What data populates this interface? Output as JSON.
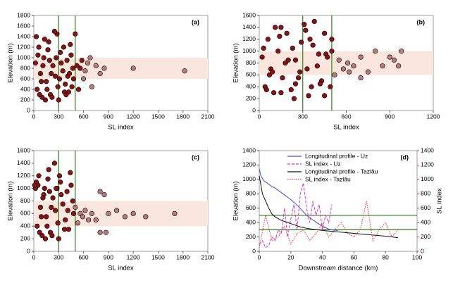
{
  "chart_data": [
    {
      "type": "scatter",
      "label": "(a)",
      "x_label": "SL index",
      "y_label": "Elevation (m)",
      "xlim": [
        0,
        2100
      ],
      "xticks": [
        0,
        300,
        600,
        900,
        1200,
        1500,
        1800,
        2100
      ],
      "ylim": [
        0,
        1800
      ],
      "yticks": [
        0,
        200,
        400,
        600,
        800,
        1000,
        1200,
        1400,
        1600,
        1800
      ],
      "band": [
        600,
        1000
      ],
      "band_color": "#fbe6dd",
      "vlines": [
        300,
        500
      ],
      "vline_color": "#2e7d1e",
      "series": [
        {
          "color": "#8b1212",
          "x": [
            20,
            40,
            60,
            80,
            100,
            120,
            150,
            180,
            200,
            230,
            260,
            280,
            300,
            320,
            350,
            380,
            400,
            420,
            450,
            480,
            30,
            70,
            110,
            140,
            170,
            210,
            250,
            290,
            330,
            370,
            410,
            440,
            470,
            50,
            90,
            130,
            160,
            190,
            220,
            270,
            310,
            360,
            390,
            430,
            460,
            500,
            520,
            540,
            560,
            580
          ],
          "values": [
            900,
            400,
            1200,
            700,
            250,
            1000,
            550,
            1300,
            300,
            850,
            650,
            1450,
            200,
            1100,
            750,
            500,
            950,
            350,
            1050,
            600,
            1400,
            300,
            850,
            200,
            1150,
            700,
            1500,
            450,
            900,
            350,
            650,
            1250,
            800,
            1050,
            550,
            1350,
            400,
            950,
            250,
            1000,
            600,
            1200,
            300,
            700,
            450,
            1450,
            850,
            400,
            800,
            950
          ]
        },
        {
          "color": "#b97a7a",
          "x": [
            600,
            620,
            650,
            680,
            700,
            750,
            800,
            850,
            1200,
            1820
          ],
          "values": [
            600,
            750,
            900,
            1000,
            450,
            850,
            700,
            800,
            800,
            750
          ]
        }
      ]
    },
    {
      "type": "scatter",
      "label": "(b)",
      "x_label": "SL index",
      "y_label": "Elevation (m)",
      "xlim": [
        0,
        1200
      ],
      "xticks": [
        0,
        300,
        600,
        900,
        1200
      ],
      "ylim": [
        0,
        1600
      ],
      "yticks": [
        0,
        200,
        400,
        600,
        800,
        1000,
        1200,
        1400,
        1600
      ],
      "band": [
        600,
        1000
      ],
      "band_color": "#fbe6dd",
      "vlines": [
        300,
        500
      ],
      "vline_color": "#2e7d1e",
      "series": [
        {
          "color": "#8b1212",
          "x": [
            20,
            40,
            60,
            80,
            100,
            130,
            160,
            190,
            220,
            250,
            280,
            310,
            340,
            370,
            400,
            430,
            460,
            490,
            30,
            70,
            110,
            150,
            200,
            240,
            290,
            330,
            380,
            420,
            470,
            50,
            90,
            140,
            180,
            230,
            270,
            320,
            360,
            410,
            450,
            500,
            500,
            450,
            150,
            250,
            350
          ],
          "values": [
            900,
            400,
            1200,
            700,
            300,
            1000,
            550,
            1300,
            350,
            850,
            650,
            1450,
            250,
            1100,
            750,
            500,
            950,
            400,
            1050,
            600,
            1400,
            300,
            850,
            200,
            1150,
            700,
            1500,
            450,
            900,
            350,
            650,
            1250,
            800,
            1050,
            550,
            1350,
            400,
            950,
            250,
            1000,
            1200,
            1300,
            1400,
            450,
            1200
          ]
        },
        {
          "color": "#b97a7a",
          "x": [
            520,
            550,
            580,
            610,
            650,
            700,
            750,
            800,
            850,
            900,
            930,
            960,
            980,
            620,
            700
          ],
          "values": [
            600,
            850,
            700,
            800,
            750,
            900,
            650,
            1000,
            750,
            900,
            850,
            750,
            1000,
            650,
            550
          ]
        }
      ]
    },
    {
      "type": "scatter",
      "label": "(c)",
      "x_label": "SL index",
      "y_label": "Elevation (m)",
      "xlim": [
        0,
        2100
      ],
      "xticks": [
        0,
        300,
        600,
        900,
        1200,
        1500,
        1800,
        2100
      ],
      "ylim": [
        0,
        1600
      ],
      "yticks": [
        0,
        200,
        400,
        600,
        800,
        1000,
        1200,
        1400,
        1600
      ],
      "band": [
        400,
        800
      ],
      "band_color": "#fbe6dd",
      "vlines": [
        300,
        500
      ],
      "vline_color": "#2e7d1e",
      "series": [
        {
          "color": "#8b1212",
          "x": [
            20,
            40,
            60,
            80,
            100,
            120,
            150,
            180,
            200,
            230,
            260,
            280,
            300,
            320,
            350,
            380,
            400,
            420,
            450,
            480,
            30,
            70,
            110,
            140,
            170,
            210,
            250,
            290,
            330,
            370,
            410,
            440,
            470,
            50,
            90,
            130,
            160,
            190,
            220,
            270,
            310,
            10
          ],
          "values": [
            1000,
            400,
            1200,
            700,
            250,
            900,
            550,
            1300,
            300,
            850,
            650,
            1000,
            200,
            1100,
            750,
            500,
            950,
            350,
            1050,
            600,
            1100,
            300,
            850,
            200,
            1150,
            700,
            1400,
            450,
            900,
            350,
            650,
            1250,
            800,
            1050,
            550,
            1000,
            400,
            950,
            250,
            1000,
            1200,
            1050
          ]
        },
        {
          "color": "#b97a7a",
          "x": [
            500,
            530,
            560,
            590,
            620,
            660,
            700,
            750,
            800,
            850,
            900,
            1000,
            1100,
            1200,
            1350,
            1700,
            800,
            870
          ],
          "values": [
            700,
            450,
            600,
            550,
            650,
            500,
            600,
            500,
            950,
            900,
            600,
            650,
            550,
            600,
            550,
            600,
            300,
            300
          ]
        }
      ]
    },
    {
      "type": "line",
      "label": "(d)",
      "x_label": "Downstream distance (km)",
      "y_label": "Elevation (m)",
      "y2_label": "SL index",
      "xlim": [
        0,
        100
      ],
      "xticks": [
        0,
        20,
        40,
        60,
        80,
        100
      ],
      "ylim": [
        0,
        1400
      ],
      "yticks": [
        0,
        200,
        400,
        600,
        800,
        1000,
        1200,
        1400
      ],
      "y2lim": [
        0,
        1400
      ],
      "y2ticks": [
        0,
        200,
        400,
        600,
        800,
        1000,
        1200,
        1400
      ],
      "hlines": [
        300,
        500
      ],
      "hline_color": "#2e7d1e",
      "series": [
        {
          "name": "Longitudinal profile - Uz",
          "color": "#3a4fc8",
          "dash": "solid",
          "x": [
            0,
            1,
            3,
            5,
            8,
            10,
            15,
            20,
            25,
            30,
            35,
            40,
            45,
            50
          ],
          "values": [
            1150,
            1050,
            980,
            950,
            900,
            880,
            800,
            720,
            620,
            500,
            420,
            350,
            300,
            290
          ]
        },
        {
          "name": "SL index - Uz",
          "color": "#d633c8",
          "dash": "dashed",
          "axis": "y2",
          "x": [
            0,
            2,
            4,
            6,
            8,
            10,
            12,
            14,
            16,
            18,
            20,
            22,
            24,
            26,
            28,
            30,
            32,
            34,
            36,
            38,
            40,
            42,
            44,
            46
          ],
          "values": [
            100,
            150,
            50,
            80,
            200,
            150,
            300,
            250,
            600,
            200,
            450,
            650,
            300,
            800,
            950,
            600,
            400,
            700,
            500,
            650,
            300,
            500,
            400,
            650
          ]
        },
        {
          "name": "Longitudinal profile - Tazlău",
          "color": "#111111",
          "dash": "solid",
          "x": [
            0,
            2,
            4,
            6,
            8,
            10,
            14,
            18,
            22,
            26,
            30,
            40,
            50,
            60,
            70,
            80,
            88
          ],
          "values": [
            1050,
            800,
            700,
            600,
            520,
            480,
            430,
            400,
            370,
            340,
            320,
            290,
            270,
            250,
            230,
            210,
            190
          ]
        },
        {
          "name": "SL index - Tazlău",
          "color": "#e0303a",
          "dash": "dotted",
          "axis": "y2",
          "x": [
            0,
            4,
            8,
            12,
            16,
            20,
            24,
            28,
            32,
            36,
            40,
            44,
            48,
            52,
            56,
            60,
            64,
            68,
            72,
            76,
            80,
            84,
            88
          ],
          "values": [
            50,
            500,
            150,
            200,
            350,
            100,
            250,
            300,
            150,
            250,
            380,
            200,
            300,
            400,
            250,
            200,
            300,
            700,
            150,
            300,
            400,
            200,
            300
          ]
        }
      ]
    }
  ]
}
